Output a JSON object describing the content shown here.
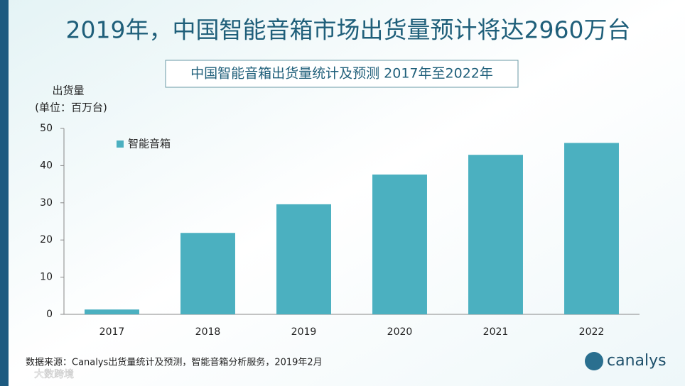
{
  "chart_data": {
    "type": "bar",
    "title": "2019年，中国智能音箱市场出货量预计将达2960万台",
    "subtitle": "中国智能音箱出货量统计及预测 2017年至2022年",
    "y_label": "出货量",
    "y_unit": "(单位：百万台)",
    "categories": [
      "2017",
      "2018",
      "2019",
      "2020",
      "2021",
      "2022"
    ],
    "series": [
      {
        "name": "智能音箱",
        "color": "#4bb0c0",
        "values": [
          1.3,
          21.9,
          29.6,
          37.6,
          42.9,
          46.1
        ]
      }
    ],
    "ylim": [
      0,
      50
    ],
    "yticks": [
      0,
      10,
      20,
      30,
      40,
      50
    ],
    "source": "数据来源：Canalys出货量统计及预测，智能音箱分析服务，2019年2月",
    "logo": "canalys",
    "watermark": "大数跨境"
  }
}
